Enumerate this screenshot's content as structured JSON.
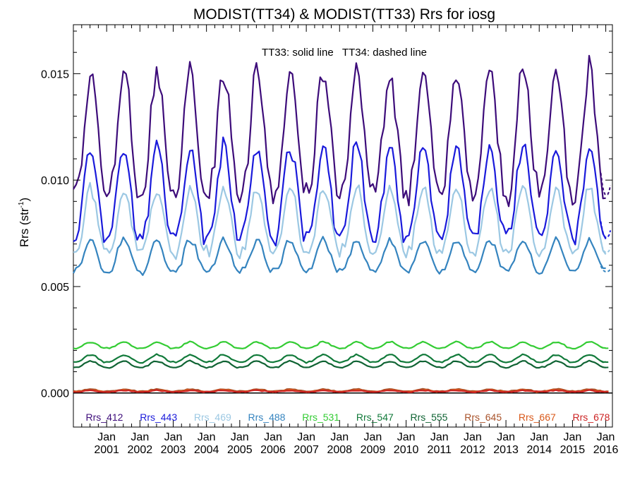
{
  "chart_data": {
    "type": "line",
    "title": "MODIST(TT34) & MODIST(TT33)  Rrs for iosg",
    "annotation": "TT33: solid line   TT34: dashed line",
    "ylabel": "Rrs (str",
    "ylabel_sup": "-1",
    "ylabel_close": ")",
    "ylim": [
      -0.0016,
      0.0173
    ],
    "xlim": [
      2000.0,
      2016.2
    ],
    "grid": false,
    "y_ticks": [
      {
        "value": 0.0,
        "label": "0.000"
      },
      {
        "value": 0.005,
        "label": "0.005"
      },
      {
        "value": 0.01,
        "label": "0.010"
      },
      {
        "value": 0.015,
        "label": "0.015"
      }
    ],
    "x_ticks": [
      {
        "value": 2001,
        "month": "Jan",
        "year": "2001"
      },
      {
        "value": 2002,
        "month": "Jan",
        "year": "2002"
      },
      {
        "value": 2003,
        "month": "Jan",
        "year": "2003"
      },
      {
        "value": 2004,
        "month": "Jan",
        "year": "2004"
      },
      {
        "value": 2005,
        "month": "Jan",
        "year": "2005"
      },
      {
        "value": 2006,
        "month": "Jan",
        "year": "2006"
      },
      {
        "value": 2007,
        "month": "Jan",
        "year": "2007"
      },
      {
        "value": 2008,
        "month": "Jan",
        "year": "2008"
      },
      {
        "value": 2009,
        "month": "Jan",
        "year": "2009"
      },
      {
        "value": 2010,
        "month": "Jan",
        "year": "2010"
      },
      {
        "value": 2011,
        "month": "Jan",
        "year": "2011"
      },
      {
        "value": 2012,
        "month": "Jan",
        "year": "2012"
      },
      {
        "value": 2013,
        "month": "Jan",
        "year": "2013"
      },
      {
        "value": 2014,
        "month": "Jan",
        "year": "2014"
      },
      {
        "value": 2015,
        "month": "Jan",
        "year": "2015"
      },
      {
        "value": 2016,
        "month": "Jan",
        "year": "2016"
      }
    ],
    "legend_placement": "bottom",
    "series_model": "seasonal monthly composites; value = base + amp*(cos(2*pi*(t - 0.55)) peak-weighted); peaks around late June each year",
    "series": [
      {
        "name": "Rrs_412",
        "color": "#3d0c7a",
        "base": 0.0093,
        "peak": 0.0152
      },
      {
        "name": "Rrs_443",
        "color": "#1a1adb",
        "base": 0.0073,
        "peak": 0.0116
      },
      {
        "name": "Rrs_469",
        "color": "#9cc8e3",
        "base": 0.0066,
        "peak": 0.0096
      },
      {
        "name": "Rrs_488",
        "color": "#3584bf",
        "base": 0.0057,
        "peak": 0.0072
      },
      {
        "name": "Rrs_531",
        "color": "#33cc33",
        "base": 0.0021,
        "peak": 0.0024
      },
      {
        "name": "Rrs_547",
        "color": "#117a3a",
        "base": 0.00145,
        "peak": 0.0018
      },
      {
        "name": "Rrs_555",
        "color": "#0f6333",
        "base": 0.0012,
        "peak": 0.0015
      },
      {
        "name": "Rrs_645",
        "color": "#a8522a",
        "base": 8e-05,
        "peak": 0.00018
      },
      {
        "name": "Rrs_667",
        "color": "#d9591a",
        "base": 6e-05,
        "peak": 0.00014
      },
      {
        "name": "Rrs_678",
        "color": "#cc2222",
        "base": 5e-05,
        "peak": 0.00012
      }
    ]
  }
}
